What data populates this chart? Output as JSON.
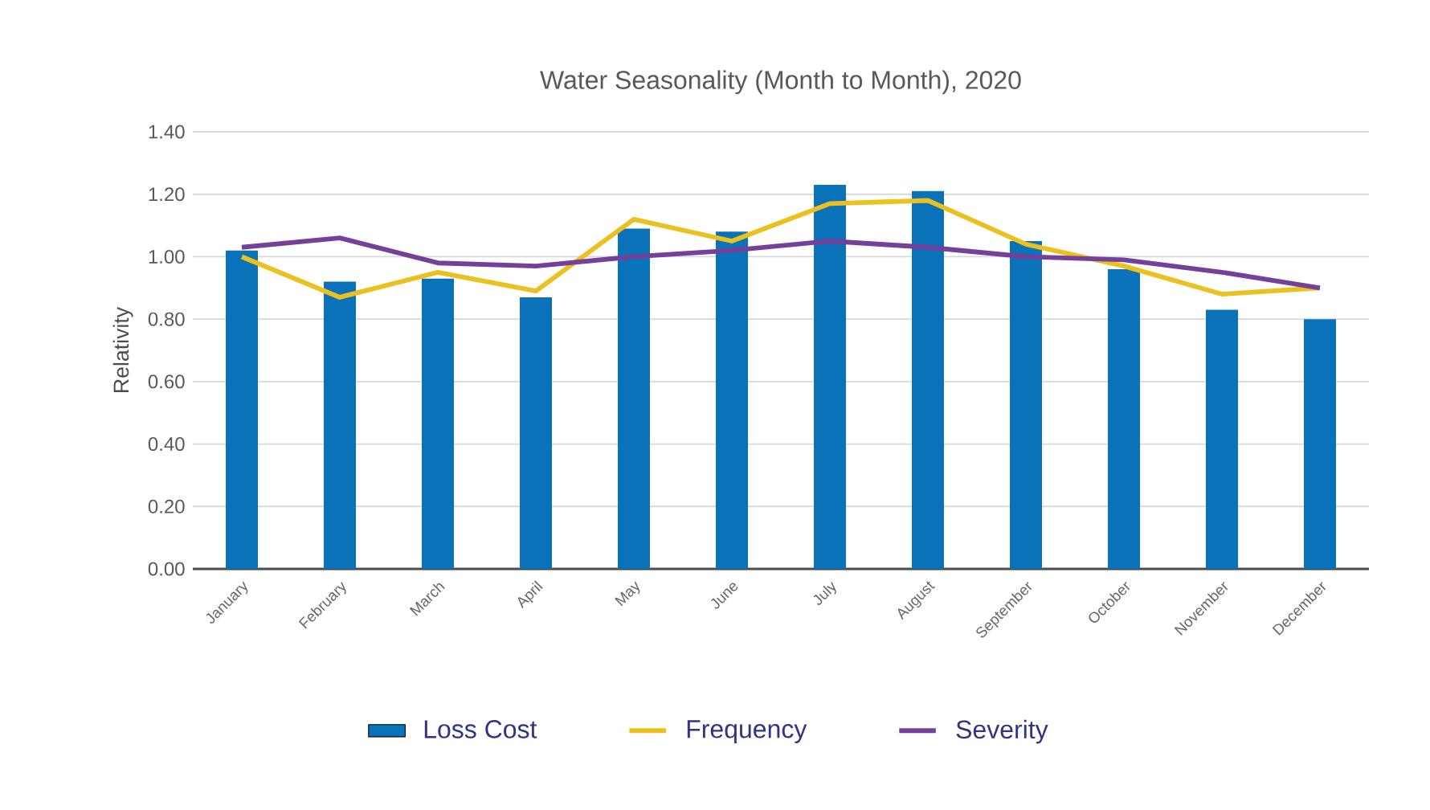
{
  "chart_data": {
    "type": "bar",
    "title": "Water Seasonality (Month to Month), 2020",
    "ylabel": "Relativity",
    "categories": [
      "January",
      "February",
      "March",
      "April",
      "May",
      "June",
      "July",
      "August",
      "September",
      "October",
      "November",
      "December"
    ],
    "series": [
      {
        "name": "Loss Cost",
        "color": "#0a72b8",
        "values": [
          1.02,
          0.92,
          0.93,
          0.87,
          1.09,
          1.08,
          1.23,
          1.21,
          1.05,
          0.96,
          0.83,
          0.8
        ]
      },
      {
        "name": "Frequency",
        "type": "line",
        "color": "#ebc11f",
        "values": [
          1.0,
          0.87,
          0.95,
          0.89,
          1.12,
          1.05,
          1.17,
          1.18,
          1.04,
          0.97,
          0.88,
          0.9
        ]
      },
      {
        "name": "Severity",
        "type": "line",
        "color": "#74409a",
        "values": [
          1.03,
          1.06,
          0.98,
          0.97,
          1.0,
          1.02,
          1.05,
          1.03,
          1.0,
          0.99,
          0.95,
          0.9
        ]
      }
    ],
    "ylim": [
      0,
      1.4
    ],
    "yticks": [
      {
        "value": 0,
        "label": "0.00"
      },
      {
        "value": 0.2,
        "label": "0.20"
      },
      {
        "value": 0.4,
        "label": "0.40"
      },
      {
        "value": 0.6,
        "label": "0.60"
      },
      {
        "value": 0.8,
        "label": "0.80"
      },
      {
        "value": 1.0,
        "label": "1.00"
      },
      {
        "value": 1.2,
        "label": "1.20"
      },
      {
        "value": 1.4,
        "label": "1.40"
      }
    ],
    "grid": "y",
    "legend": "bottom",
    "marker": "none",
    "line_style": "solid"
  }
}
